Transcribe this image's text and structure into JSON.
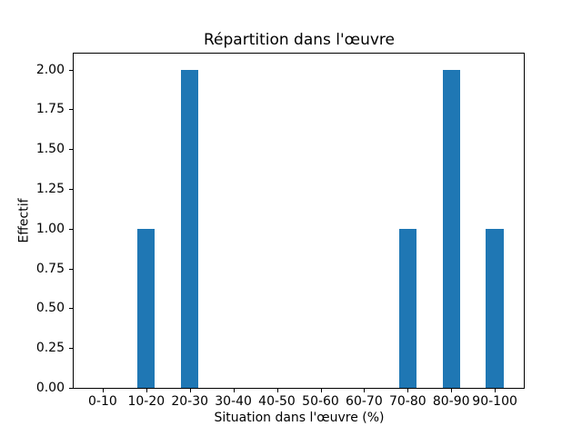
{
  "chart_data": {
    "type": "bar",
    "title": "Répartition dans l'œuvre",
    "xlabel": "Situation dans l'œuvre (%)",
    "ylabel": "Effectif",
    "categories": [
      "0-10",
      "10-20",
      "20-30",
      "30-40",
      "40-50",
      "50-60",
      "60-70",
      "70-80",
      "80-90",
      "90-100"
    ],
    "values": [
      0,
      1,
      2,
      0,
      0,
      0,
      0,
      1,
      2,
      1
    ],
    "ytick_labels": [
      "0.00",
      "0.25",
      "0.50",
      "0.75",
      "1.00",
      "1.25",
      "1.50",
      "1.75",
      "2.00"
    ],
    "ylim": [
      0,
      2.1
    ],
    "bar_color": "#1f77b4",
    "background_color": "#ffffff",
    "grid": false,
    "legend_position": "none",
    "bar_width_units": 0.4
  }
}
